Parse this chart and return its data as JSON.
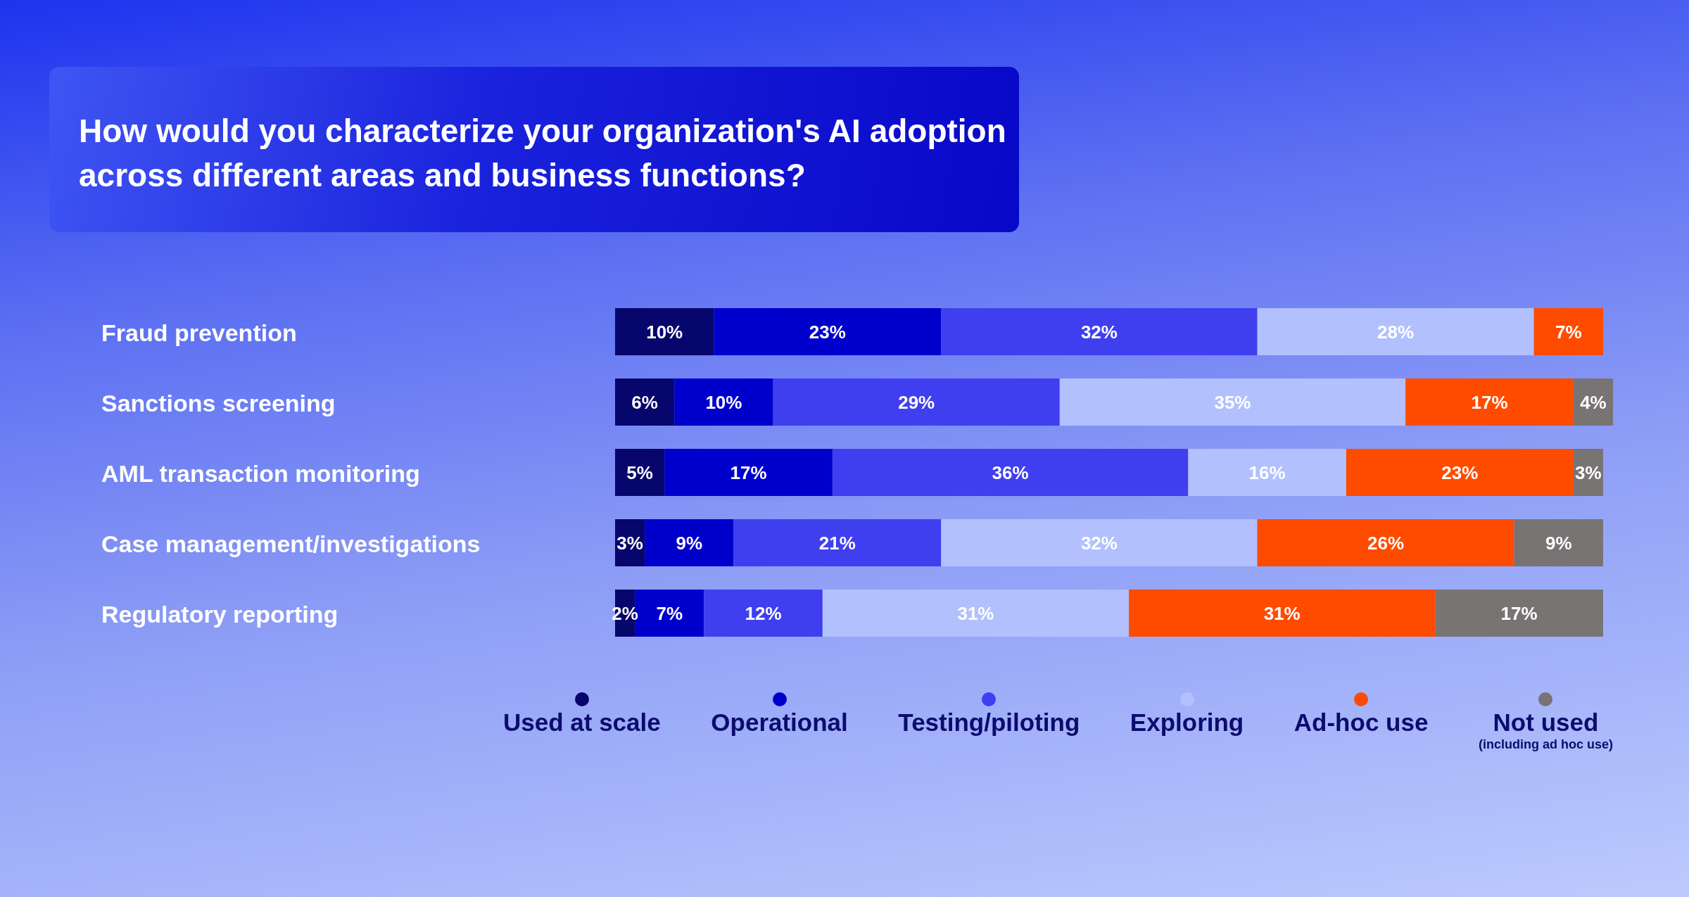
{
  "chart_data": {
    "type": "bar",
    "orientation": "horizontal",
    "stacked": true,
    "title": "How would you characterize your organization's AI adoption across different areas and business functions?",
    "categories": [
      "Fraud prevention",
      "Sanctions screening",
      "AML transaction monitoring",
      "Case management/investigations",
      "Regulatory reporting"
    ],
    "series": [
      {
        "name": "Used at scale",
        "color": "#07066c",
        "values": [
          10,
          6,
          5,
          3,
          2
        ],
        "value_labels": [
          "10%",
          "6%",
          "5%",
          "3%",
          "2%"
        ]
      },
      {
        "name": "Operational",
        "color": "#0000cc",
        "values": [
          23,
          10,
          17,
          9,
          7
        ],
        "value_labels": [
          "23%",
          "10%",
          "17%",
          "9%",
          "7%"
        ]
      },
      {
        "name": "Testing/piloting",
        "color": "#3f3ff0",
        "values": [
          32,
          29,
          36,
          21,
          12
        ],
        "value_labels": [
          "32%",
          "29%",
          "36%",
          "21%",
          "12%"
        ]
      },
      {
        "name": "Exploring",
        "color": "#b2c1fe",
        "values": [
          28,
          35,
          16,
          32,
          31
        ],
        "value_labels": [
          "28%",
          "35%",
          "16%",
          "32%",
          "31%"
        ]
      },
      {
        "name": "Ad-hoc use",
        "color": "#ff4b00",
        "values": [
          7,
          17,
          23,
          26,
          31
        ],
        "value_labels": [
          "7%",
          "17%",
          "23%",
          "26%",
          "31%"
        ]
      },
      {
        "name": "Not used (including ad hoc use)",
        "color": "#787474",
        "values": [
          null,
          4,
          3,
          9,
          17
        ],
        "value_labels": [
          null,
          "4%",
          "3%",
          "9%",
          "17%"
        ]
      }
    ],
    "xlim": [
      0,
      101
    ],
    "tick_labels": "y",
    "legend": "bottom"
  }
}
